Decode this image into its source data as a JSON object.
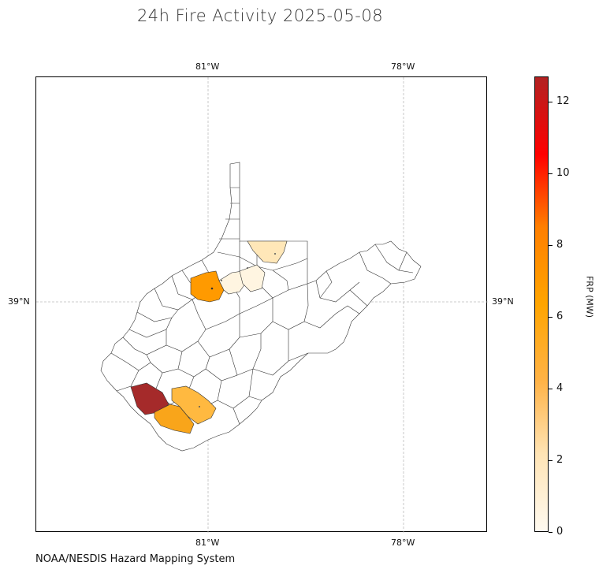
{
  "title": "24h Fire Activity 2025-05-08",
  "credit": "NOAA/NESDIS Hazard Mapping System",
  "axes": {
    "top_ticks": [
      "81°W",
      "78°W"
    ],
    "bottom_ticks": [
      "81°W",
      "78°W"
    ],
    "left_ticks": [
      "39°N"
    ],
    "right_ticks": [
      "39°N"
    ]
  },
  "colorbar": {
    "label": "FRP (MW)",
    "ticks": [
      "0",
      "2",
      "4",
      "6",
      "8",
      "10",
      "12"
    ],
    "min": 0,
    "max": 12.7,
    "colors": [
      "#fffaf0",
      "#ffe4b5",
      "#ffb347",
      "#ffa500",
      "#ff7f00",
      "#ff0000",
      "#b22222"
    ]
  },
  "region_colors": {
    "outline": "#333333",
    "none": "#ffffff",
    "very_low": "#fff5e1",
    "low": "#ffe7b8",
    "medium": "#ffb940",
    "medium_high": "#f9a51a",
    "high": "#ff9a00",
    "max": "#a52a2a"
  }
}
